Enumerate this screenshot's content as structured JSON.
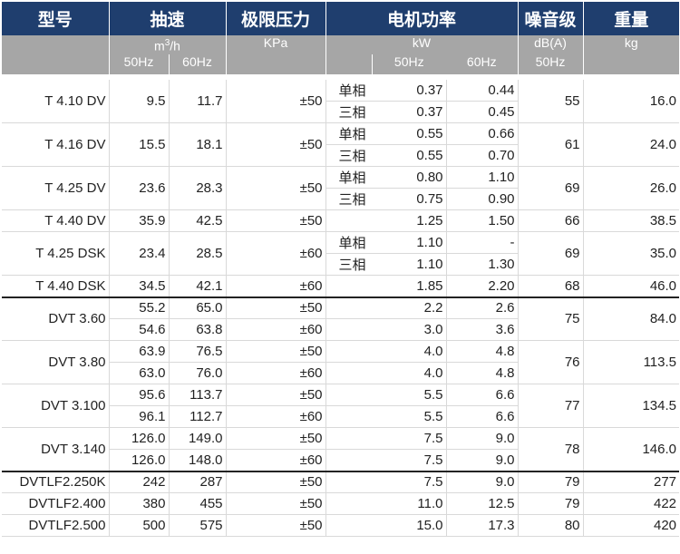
{
  "headers": {
    "model": "型号",
    "speed": "抽速",
    "pressure": "极限压力",
    "power": "电机功率",
    "noise": "噪音级",
    "weight": "重量"
  },
  "units": {
    "speed_base": "m",
    "speed_exp": "3",
    "speed_tail": "/h",
    "pressure": "KPa",
    "power": "kW",
    "noise": "dB(A)",
    "weight": "kg"
  },
  "subheaders": {
    "speed_50": "50Hz",
    "speed_60": "60Hz",
    "power_50": "50Hz",
    "power_60": "60Hz",
    "noise_50": "50Hz"
  },
  "groups": [
    {
      "model": "T 4.10 DV",
      "speed": [
        "9.5",
        "11.7"
      ],
      "pressure": "±50",
      "phases": [
        "单相",
        "三相"
      ],
      "power50": [
        "0.37",
        "0.37"
      ],
      "power60": [
        "0.44",
        "0.45"
      ],
      "noise": "55",
      "weight": "16.0"
    },
    {
      "model": "T 4.16 DV",
      "speed": [
        "15.5",
        "18.1"
      ],
      "pressure": "±50",
      "phases": [
        "单相",
        "三相"
      ],
      "power50": [
        "0.55",
        "0.55"
      ],
      "power60": [
        "0.66",
        "0.70"
      ],
      "noise": "61",
      "weight": "24.0"
    },
    {
      "model": "T 4.25 DV",
      "speed": [
        "23.6",
        "28.3"
      ],
      "pressure": "±50",
      "phases": [
        "单相",
        "三相"
      ],
      "power50": [
        "0.80",
        "0.75"
      ],
      "power60": [
        "1.10",
        "0.90"
      ],
      "noise": "69",
      "weight": "26.0"
    },
    {
      "model": "T 4.40 DV",
      "speed": [
        "35.9",
        "42.5"
      ],
      "pressure": "±50",
      "power50": "1.25",
      "power60": "1.50",
      "noise": "66",
      "weight": "38.5"
    },
    {
      "model": "T 4.25 DSK",
      "speed": [
        "23.4",
        "28.5"
      ],
      "pressure": "±60",
      "phases": [
        "单相",
        "三相"
      ],
      "power50": [
        "1.10",
        "1.10"
      ],
      "power60": [
        "-",
        "1.30"
      ],
      "noise": "69",
      "weight": "35.0"
    },
    {
      "model": "T 4.40 DSK",
      "speed": [
        "34.5",
        "42.1"
      ],
      "pressure": "±60",
      "power50": "1.85",
      "power60": "2.20",
      "noise": "68",
      "weight": "46.0"
    }
  ],
  "dvt": [
    {
      "model": "DVT 3.60",
      "rows": [
        {
          "speed": [
            "55.2",
            "65.0"
          ],
          "pressure": "±50",
          "power50": "2.2",
          "power60": "2.6"
        },
        {
          "speed": [
            "54.6",
            "63.8"
          ],
          "pressure": "±60",
          "power50": "3.0",
          "power60": "3.6"
        }
      ],
      "noise": "75",
      "weight": "84.0"
    },
    {
      "model": "DVT 3.80",
      "rows": [
        {
          "speed": [
            "63.9",
            "76.5"
          ],
          "pressure": "±50",
          "power50": "4.0",
          "power60": "4.8"
        },
        {
          "speed": [
            "63.0",
            "76.0"
          ],
          "pressure": "±60",
          "power50": "4.0",
          "power60": "4.8"
        }
      ],
      "noise": "76",
      "weight": "113.5"
    },
    {
      "model": "DVT 3.100",
      "rows": [
        {
          "speed": [
            "95.6",
            "113.7"
          ],
          "pressure": "±50",
          "power50": "5.5",
          "power60": "6.6"
        },
        {
          "speed": [
            "96.1",
            "112.7"
          ],
          "pressure": "±60",
          "power50": "5.5",
          "power60": "6.6"
        }
      ],
      "noise": "77",
      "weight": "134.5"
    },
    {
      "model": "DVT 3.140",
      "rows": [
        {
          "speed": [
            "126.0",
            "149.0"
          ],
          "pressure": "±50",
          "power50": "7.5",
          "power60": "9.0"
        },
        {
          "speed": [
            "126.0",
            "148.0"
          ],
          "pressure": "±60",
          "power50": "7.5",
          "power60": "9.0"
        }
      ],
      "noise": "78",
      "weight": "146.0"
    }
  ],
  "dvtlf": [
    {
      "model": "DVTLF2.250K",
      "speed": [
        "242",
        "287"
      ],
      "pressure": "±50",
      "power50": "7.5",
      "power60": "9.0",
      "noise": "79",
      "weight": "277"
    },
    {
      "model": "DVTLF2.400",
      "speed": [
        "380",
        "455"
      ],
      "pressure": "±50",
      "power50": "11.0",
      "power60": "12.5",
      "noise": "79",
      "weight": "422"
    },
    {
      "model": "DVTLF2.500",
      "speed": [
        "500",
        "575"
      ],
      "pressure": "±50",
      "power50": "15.0",
      "power60": "17.3",
      "noise": "80",
      "weight": "420"
    }
  ]
}
